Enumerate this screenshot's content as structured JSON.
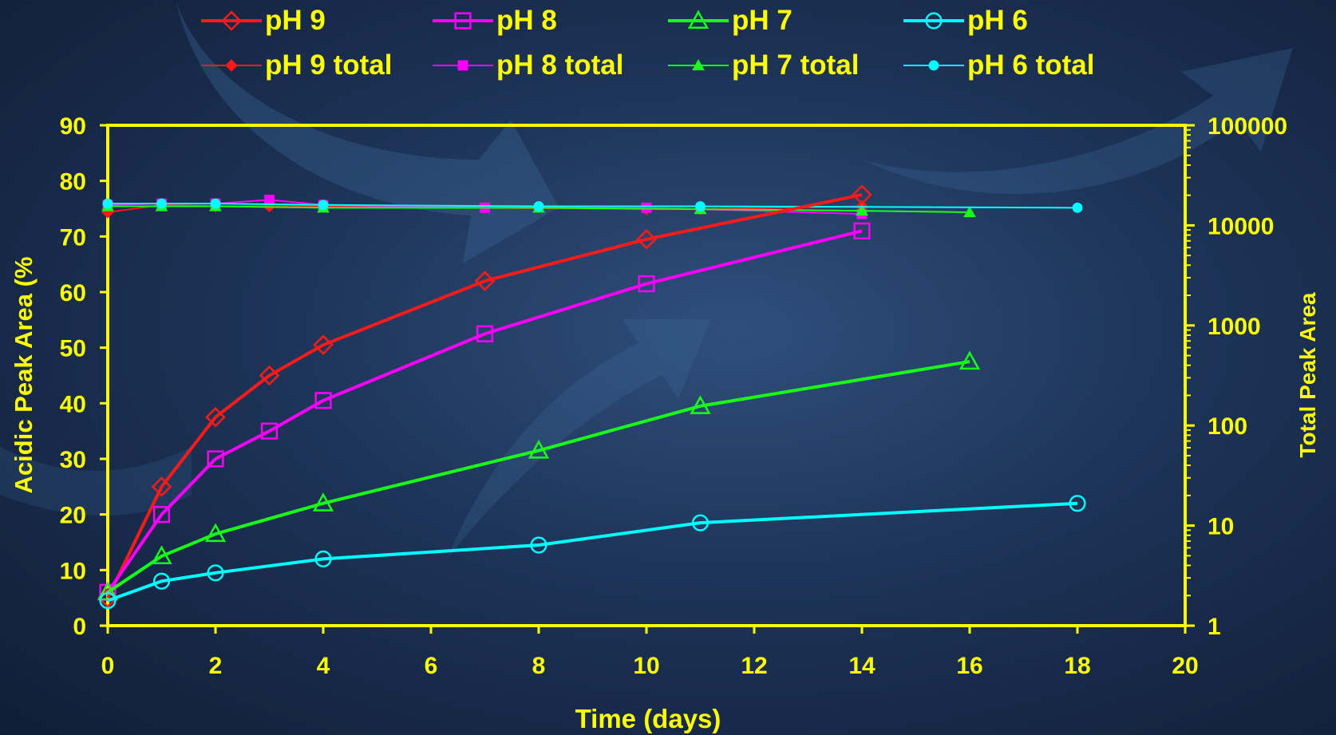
{
  "chart_data": {
    "type": "line",
    "x_axis": {
      "label": "Time (days)",
      "min": 0,
      "max": 20,
      "ticks": [
        "0",
        "2",
        "4",
        "6",
        "8",
        "10",
        "12",
        "14",
        "16",
        "18",
        "20"
      ]
    },
    "y_axis_left": {
      "label": "Acidic Peak Area (%",
      "min": 0,
      "max": 90,
      "ticks": [
        "0",
        "10",
        "20",
        "30",
        "40",
        "50",
        "60",
        "70",
        "80",
        "90"
      ]
    },
    "y_axis_right": {
      "label": "Total Peak Area",
      "scale": "log",
      "min": 1,
      "max": 100000,
      "ticks": [
        "1",
        "10",
        "100",
        "1000",
        "10000",
        "100000"
      ]
    },
    "series": [
      {
        "name": "pH 9",
        "axis": "left",
        "marker": "diamond-open",
        "color": "#ff1a1a",
        "x": [
          0,
          1,
          2,
          3,
          4,
          7,
          10,
          14
        ],
        "y": [
          5,
          25,
          37.5,
          45,
          50.5,
          62,
          69.5,
          77.5
        ]
      },
      {
        "name": "pH 8",
        "axis": "left",
        "marker": "square-open",
        "color": "#ff00ff",
        "x": [
          0,
          1,
          2,
          3,
          4,
          7,
          10,
          14
        ],
        "y": [
          6,
          20,
          30,
          35,
          40.5,
          52.5,
          61.5,
          71
        ]
      },
      {
        "name": "pH 7",
        "axis": "left",
        "marker": "triangle-open",
        "color": "#1aff1a",
        "x": [
          0,
          1,
          2,
          4,
          8,
          11,
          16
        ],
        "y": [
          6,
          12.5,
          16.5,
          22,
          31.5,
          39.5,
          47.5
        ]
      },
      {
        "name": "pH 6",
        "axis": "left",
        "marker": "circle-open",
        "color": "#00ffff",
        "x": [
          0,
          1,
          2,
          4,
          8,
          11,
          18
        ],
        "y": [
          4.5,
          8,
          9.5,
          12,
          14.5,
          18.5,
          22
        ]
      },
      {
        "name": "pH 9 total",
        "axis": "right",
        "marker": "diamond-filled",
        "color": "#ff1a1a",
        "x": [
          0,
          1,
          2,
          3,
          4,
          7,
          10,
          11,
          14
        ],
        "y": [
          13500,
          16000,
          15500,
          15500,
          15500,
          15000,
          14500,
          14500,
          15500
        ]
      },
      {
        "name": "pH 8 total",
        "axis": "right",
        "marker": "square-filled",
        "color": "#ff00ff",
        "x": [
          0,
          1,
          2,
          3,
          4,
          7,
          10,
          14
        ],
        "y": [
          16000,
          16500,
          16500,
          18000,
          16000,
          15000,
          15000,
          13000
        ]
      },
      {
        "name": "pH 7 total",
        "axis": "right",
        "marker": "triangle-filled",
        "color": "#1aff1a",
        "x": [
          0,
          1,
          2,
          4,
          8,
          11,
          14,
          16
        ],
        "y": [
          15500,
          15500,
          15500,
          15000,
          15000,
          14500,
          14000,
          13500
        ]
      },
      {
        "name": "pH 6 total",
        "axis": "right",
        "marker": "circle-filled",
        "color": "#00ffff",
        "x": [
          0,
          1,
          2,
          4,
          8,
          11,
          18
        ],
        "y": [
          16500,
          16500,
          16500,
          16000,
          15500,
          15500,
          15000
        ]
      }
    ],
    "legend_position": "top",
    "grid": false
  },
  "colors": {
    "axis": "#ffff00",
    "background": "#1d3357"
  }
}
